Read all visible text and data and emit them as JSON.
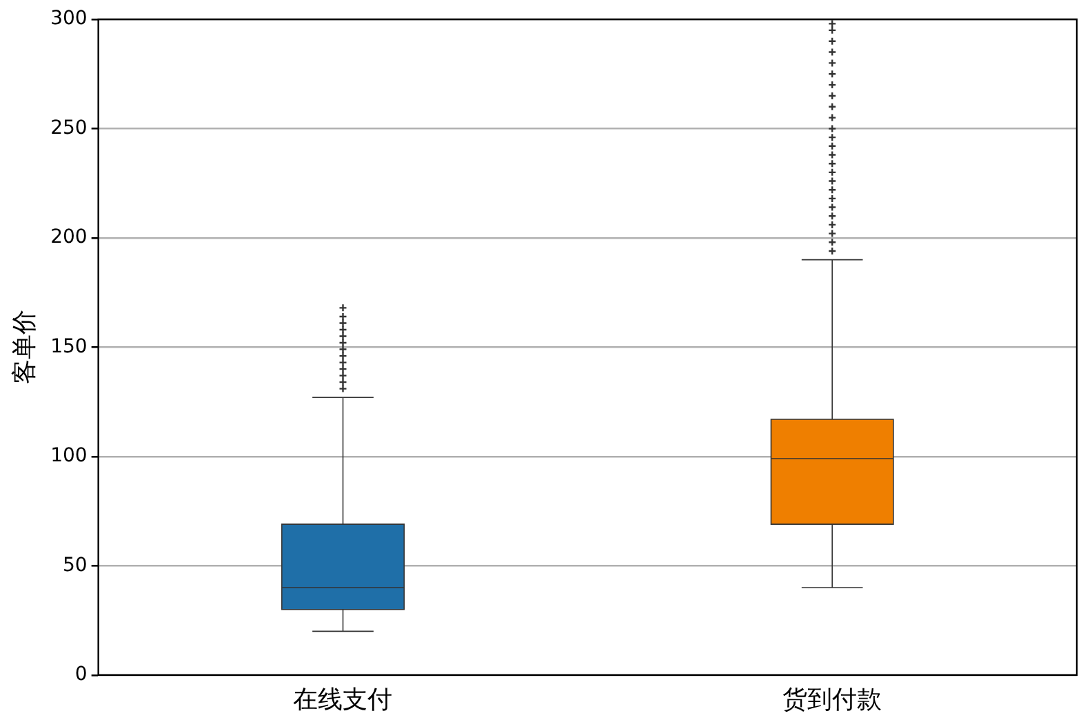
{
  "chart_data": {
    "type": "box",
    "ylabel": "客单价",
    "categories": [
      "在线支付",
      "货到付款"
    ],
    "colors": [
      "#1f6fa8",
      "#ef7f00"
    ],
    "boxes": [
      {
        "low": 20,
        "q1": 30,
        "median": 40,
        "q3": 69,
        "high": 127,
        "outliers": [
          131,
          134,
          137,
          140,
          143,
          146,
          149,
          152,
          155,
          158,
          161,
          164,
          168
        ]
      },
      {
        "low": 40,
        "q1": 69,
        "median": 99,
        "q3": 117,
        "high": 190,
        "outliers": [
          194,
          198,
          202,
          206,
          210,
          214,
          218,
          222,
          226,
          230,
          234,
          238,
          242,
          246,
          250,
          255,
          260,
          265,
          270,
          275,
          280,
          285,
          290,
          295,
          298
        ]
      }
    ],
    "ylim": [
      0,
      300
    ],
    "yticks": [
      0,
      50,
      100,
      150,
      200,
      250,
      300
    ],
    "grid": "y",
    "marker": "cross"
  }
}
